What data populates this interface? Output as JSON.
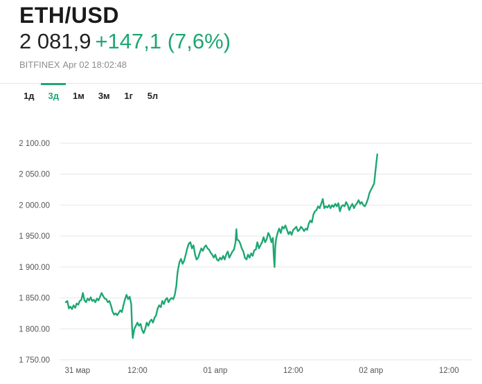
{
  "header": {
    "symbol": "ETH/USD",
    "price": "2 081,9",
    "change": "+147,1 (7,6%)",
    "source": "BITFINEX",
    "timestamp": "Apr 02 18:02:48"
  },
  "range_tabs": [
    {
      "label": "1д",
      "active": false
    },
    {
      "label": "3д",
      "active": true
    },
    {
      "label": "1м",
      "active": false
    },
    {
      "label": "3м",
      "active": false
    },
    {
      "label": "1г",
      "active": false
    },
    {
      "label": "5л",
      "active": false
    }
  ],
  "colors": {
    "accent": "#1ea772",
    "line": "#1ea772",
    "grid": "#e6e6e6"
  },
  "chart_data": {
    "type": "line",
    "ylim": [
      1750,
      2100
    ],
    "yticks": [
      1750,
      1800,
      1850,
      1900,
      1950,
      2000,
      2050,
      2100
    ],
    "ytick_labels": [
      "1 750.00",
      "1 800.00",
      "1 850.00",
      "1 900.00",
      "1 950.00",
      "2 000.00",
      "2 050.00",
      "2 100.00"
    ],
    "xticks": [
      {
        "x": 0.115,
        "label": "31 мар"
      },
      {
        "x": 0.5,
        "label": "12:00"
      },
      {
        "x": 1.0,
        "label": "01 апр"
      },
      {
        "x": 1.5,
        "label": "12:00"
      },
      {
        "x": 2.0,
        "label": "02 апр"
      },
      {
        "x": 2.5,
        "label": "12:00"
      }
    ],
    "xlim": [
      0.0,
      2.65
    ],
    "grid": true,
    "series": [
      {
        "values": [
          [
            0.04,
            1843
          ],
          [
            0.05,
            1845
          ],
          [
            0.06,
            1833
          ],
          [
            0.07,
            1836
          ],
          [
            0.08,
            1832
          ],
          [
            0.09,
            1838
          ],
          [
            0.1,
            1834
          ],
          [
            0.11,
            1841
          ],
          [
            0.12,
            1839
          ],
          [
            0.13,
            1845
          ],
          [
            0.14,
            1847
          ],
          [
            0.15,
            1858
          ],
          [
            0.16,
            1846
          ],
          [
            0.17,
            1843
          ],
          [
            0.18,
            1849
          ],
          [
            0.19,
            1846
          ],
          [
            0.2,
            1851
          ],
          [
            0.21,
            1845
          ],
          [
            0.22,
            1847
          ],
          [
            0.23,
            1843
          ],
          [
            0.24,
            1849
          ],
          [
            0.25,
            1846
          ],
          [
            0.26,
            1852
          ],
          [
            0.27,
            1858
          ],
          [
            0.28,
            1853
          ],
          [
            0.29,
            1849
          ],
          [
            0.3,
            1848
          ],
          [
            0.31,
            1843
          ],
          [
            0.32,
            1845
          ],
          [
            0.33,
            1838
          ],
          [
            0.34,
            1828
          ],
          [
            0.35,
            1823
          ],
          [
            0.36,
            1825
          ],
          [
            0.37,
            1822
          ],
          [
            0.38,
            1826
          ],
          [
            0.39,
            1830
          ],
          [
            0.4,
            1827
          ],
          [
            0.41,
            1838
          ],
          [
            0.42,
            1848
          ],
          [
            0.43,
            1855
          ],
          [
            0.44,
            1848
          ],
          [
            0.45,
            1852
          ],
          [
            0.46,
            1840
          ],
          [
            0.465,
            1805
          ],
          [
            0.47,
            1785
          ],
          [
            0.48,
            1800
          ],
          [
            0.49,
            1805
          ],
          [
            0.5,
            1810
          ],
          [
            0.51,
            1805
          ],
          [
            0.52,
            1808
          ],
          [
            0.53,
            1798
          ],
          [
            0.54,
            1793
          ],
          [
            0.55,
            1800
          ],
          [
            0.56,
            1810
          ],
          [
            0.57,
            1805
          ],
          [
            0.58,
            1812
          ],
          [
            0.59,
            1815
          ],
          [
            0.6,
            1810
          ],
          [
            0.61,
            1818
          ],
          [
            0.62,
            1822
          ],
          [
            0.63,
            1833
          ],
          [
            0.64,
            1838
          ],
          [
            0.65,
            1835
          ],
          [
            0.66,
            1845
          ],
          [
            0.67,
            1840
          ],
          [
            0.68,
            1847
          ],
          [
            0.69,
            1850
          ],
          [
            0.7,
            1843
          ],
          [
            0.71,
            1848
          ],
          [
            0.72,
            1850
          ],
          [
            0.73,
            1848
          ],
          [
            0.74,
            1855
          ],
          [
            0.75,
            1870
          ],
          [
            0.755,
            1885
          ],
          [
            0.76,
            1895
          ],
          [
            0.77,
            1908
          ],
          [
            0.78,
            1913
          ],
          [
            0.79,
            1905
          ],
          [
            0.8,
            1910
          ],
          [
            0.81,
            1920
          ],
          [
            0.82,
            1930
          ],
          [
            0.83,
            1938
          ],
          [
            0.84,
            1940
          ],
          [
            0.85,
            1930
          ],
          [
            0.86,
            1935
          ],
          [
            0.87,
            1920
          ],
          [
            0.88,
            1912
          ],
          [
            0.89,
            1915
          ],
          [
            0.9,
            1923
          ],
          [
            0.91,
            1930
          ],
          [
            0.92,
            1926
          ],
          [
            0.93,
            1932
          ],
          [
            0.94,
            1935
          ],
          [
            0.95,
            1930
          ],
          [
            0.96,
            1928
          ],
          [
            0.97,
            1923
          ],
          [
            0.98,
            1920
          ],
          [
            0.99,
            1915
          ],
          [
            1.0,
            1920
          ],
          [
            1.01,
            1912
          ],
          [
            1.02,
            1910
          ],
          [
            1.03,
            1915
          ],
          [
            1.04,
            1912
          ],
          [
            1.05,
            1918
          ],
          [
            1.06,
            1912
          ],
          [
            1.07,
            1920
          ],
          [
            1.08,
            1925
          ],
          [
            1.09,
            1915
          ],
          [
            1.1,
            1920
          ],
          [
            1.11,
            1925
          ],
          [
            1.12,
            1928
          ],
          [
            1.13,
            1940
          ],
          [
            1.135,
            1961
          ],
          [
            1.14,
            1944
          ],
          [
            1.15,
            1943
          ],
          [
            1.16,
            1938
          ],
          [
            1.17,
            1930
          ],
          [
            1.18,
            1925
          ],
          [
            1.19,
            1915
          ],
          [
            1.2,
            1912
          ],
          [
            1.21,
            1920
          ],
          [
            1.22,
            1915
          ],
          [
            1.23,
            1922
          ],
          [
            1.24,
            1918
          ],
          [
            1.25,
            1927
          ],
          [
            1.26,
            1928
          ],
          [
            1.27,
            1940
          ],
          [
            1.28,
            1930
          ],
          [
            1.29,
            1935
          ],
          [
            1.3,
            1940
          ],
          [
            1.31,
            1948
          ],
          [
            1.32,
            1940
          ],
          [
            1.33,
            1945
          ],
          [
            1.34,
            1955
          ],
          [
            1.35,
            1950
          ],
          [
            1.36,
            1940
          ],
          [
            1.37,
            1947
          ],
          [
            1.375,
            1920
          ],
          [
            1.38,
            1900
          ],
          [
            1.385,
            1932
          ],
          [
            1.39,
            1945
          ],
          [
            1.4,
            1955
          ],
          [
            1.41,
            1962
          ],
          [
            1.42,
            1955
          ],
          [
            1.43,
            1965
          ],
          [
            1.44,
            1962
          ],
          [
            1.45,
            1967
          ],
          [
            1.46,
            1960
          ],
          [
            1.47,
            1953
          ],
          [
            1.48,
            1957
          ],
          [
            1.49,
            1952
          ],
          [
            1.5,
            1960
          ],
          [
            1.51,
            1962
          ],
          [
            1.52,
            1965
          ],
          [
            1.53,
            1958
          ],
          [
            1.54,
            1960
          ],
          [
            1.55,
            1965
          ],
          [
            1.56,
            1962
          ],
          [
            1.57,
            1958
          ],
          [
            1.58,
            1962
          ],
          [
            1.59,
            1960
          ],
          [
            1.6,
            1970
          ],
          [
            1.61,
            1975
          ],
          [
            1.62,
            1972
          ],
          [
            1.63,
            1985
          ],
          [
            1.64,
            1990
          ],
          [
            1.65,
            1992
          ],
          [
            1.66,
            1998
          ],
          [
            1.67,
            1995
          ],
          [
            1.68,
            2002
          ],
          [
            1.69,
            2010
          ],
          [
            1.7,
            1995
          ],
          [
            1.71,
            1998
          ],
          [
            1.72,
            1996
          ],
          [
            1.73,
            2000
          ],
          [
            1.74,
            1995
          ],
          [
            1.75,
            2000
          ],
          [
            1.76,
            1997
          ],
          [
            1.77,
            2002
          ],
          [
            1.78,
            1998
          ],
          [
            1.79,
            2003
          ],
          [
            1.8,
            1990
          ],
          [
            1.81,
            1998
          ],
          [
            1.82,
            2000
          ],
          [
            1.83,
            1998
          ],
          [
            1.84,
            2005
          ],
          [
            1.85,
            2000
          ],
          [
            1.86,
            1992
          ],
          [
            1.87,
            1998
          ],
          [
            1.88,
            2002
          ],
          [
            1.89,
            1995
          ],
          [
            1.9,
            2000
          ],
          [
            1.91,
            2003
          ],
          [
            1.92,
            2008
          ],
          [
            1.93,
            2002
          ],
          [
            1.94,
            2005
          ],
          [
            1.95,
            2000
          ],
          [
            1.96,
            1998
          ],
          [
            1.97,
            2003
          ],
          [
            1.98,
            2010
          ],
          [
            1.99,
            2020
          ],
          [
            2.0,
            2025
          ],
          [
            2.01,
            2030
          ],
          [
            2.02,
            2035
          ],
          [
            2.03,
            2060
          ],
          [
            2.04,
            2082
          ]
        ]
      }
    ]
  }
}
